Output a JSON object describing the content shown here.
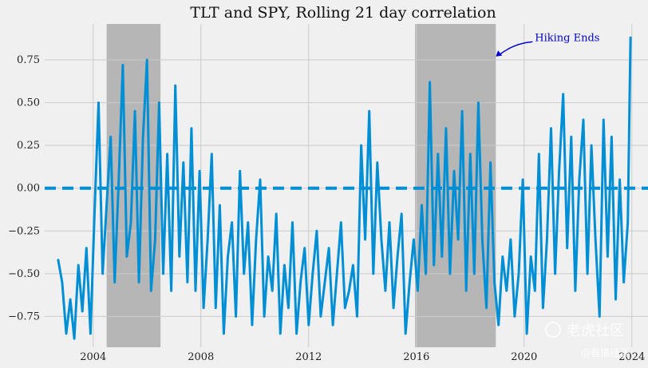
{
  "chart_data": {
    "type": "line",
    "title": "TLT and SPY, Rolling 21 day correlation",
    "xlabel": "",
    "ylabel": "",
    "xlim": [
      2002.2,
      2024.6
    ],
    "ylim": [
      -0.93,
      0.96
    ],
    "x_ticks": [
      2004,
      2008,
      2012,
      2016,
      2020,
      2024
    ],
    "x_tick_labels": [
      "2004",
      "2008",
      "2012",
      "2016",
      "2020",
      "2024"
    ],
    "y_ticks": [
      0.75,
      0.5,
      0.25,
      0.0,
      -0.25,
      -0.5,
      -0.75
    ],
    "y_tick_labels": [
      "0.75",
      "0.50",
      "0.25",
      "0.00",
      "−0.25",
      "−0.50",
      "−0.75"
    ],
    "grid": true,
    "shaded_regions": [
      {
        "x0": 2004.5,
        "x1": 2006.5
      },
      {
        "x0": 2015.95,
        "x1": 2018.95
      }
    ],
    "reference_line": {
      "y": 0.0,
      "style": "dashed"
    },
    "annotation": {
      "text": "Hiking Ends",
      "x": 2020.4,
      "y": 0.86,
      "arrow_to": {
        "x": 2018.95,
        "y": 0.77
      }
    },
    "series": [
      {
        "x": [
          2002.7,
          2002.85,
          2003.0,
          2003.15,
          2003.3,
          2003.45,
          2003.6,
          2003.75,
          2003.9,
          2004.05,
          2004.2,
          2004.35,
          2004.5,
          2004.65,
          2004.8,
          2004.95,
          2005.1,
          2005.25,
          2005.4,
          2005.55,
          2005.7,
          2005.85,
          2006.0,
          2006.15,
          2006.3,
          2006.45,
          2006.6,
          2006.75,
          2006.9,
          2007.05,
          2007.2,
          2007.35,
          2007.5,
          2007.65,
          2007.8,
          2007.95,
          2008.1,
          2008.25,
          2008.4,
          2008.55,
          2008.7,
          2008.85,
          2009.0,
          2009.15,
          2009.3,
          2009.45,
          2009.6,
          2009.75,
          2009.9,
          2010.05,
          2010.2,
          2010.35,
          2010.5,
          2010.65,
          2010.8,
          2010.95,
          2011.1,
          2011.25,
          2011.4,
          2011.55,
          2011.7,
          2011.85,
          2012.0,
          2012.15,
          2012.3,
          2012.45,
          2012.6,
          2012.75,
          2012.9,
          2013.05,
          2013.2,
          2013.35,
          2013.5,
          2013.65,
          2013.8,
          2013.95,
          2014.1,
          2014.25,
          2014.4,
          2014.55,
          2014.7,
          2014.85,
          2015.0,
          2015.15,
          2015.3,
          2015.45,
          2015.6,
          2015.75,
          2015.9,
          2016.05,
          2016.2,
          2016.35,
          2016.5,
          2016.65,
          2016.8,
          2016.95,
          2017.1,
          2017.25,
          2017.4,
          2017.55,
          2017.7,
          2017.85,
          2018.0,
          2018.15,
          2018.3,
          2018.45,
          2018.6,
          2018.75,
          2018.9,
          2019.05,
          2019.2,
          2019.35,
          2019.5,
          2019.65,
          2019.8,
          2019.95,
          2020.1,
          2020.25,
          2020.4,
          2020.55,
          2020.7,
          2020.85,
          2021.0,
          2021.15,
          2021.3,
          2021.45,
          2021.6,
          2021.75,
          2021.9,
          2022.05,
          2022.2,
          2022.35,
          2022.5,
          2022.65,
          2022.8,
          2022.95,
          2023.1,
          2023.25,
          2023.4,
          2023.55,
          2023.7,
          2023.85,
          2023.95
        ],
        "y": [
          -0.42,
          -0.55,
          -0.85,
          -0.65,
          -0.88,
          -0.45,
          -0.72,
          -0.35,
          -0.85,
          -0.15,
          0.5,
          -0.5,
          -0.1,
          0.3,
          -0.55,
          0.05,
          0.72,
          -0.4,
          -0.2,
          0.45,
          -0.55,
          0.3,
          0.75,
          -0.6,
          -0.3,
          0.5,
          -0.5,
          0.2,
          -0.6,
          0.6,
          -0.4,
          0.15,
          -0.55,
          0.35,
          -0.6,
          0.1,
          -0.7,
          -0.3,
          0.2,
          -0.7,
          -0.1,
          -0.85,
          -0.4,
          -0.2,
          -0.75,
          0.1,
          -0.5,
          -0.2,
          -0.8,
          -0.3,
          0.05,
          -0.75,
          -0.4,
          -0.6,
          -0.15,
          -0.85,
          -0.45,
          -0.7,
          -0.2,
          -0.85,
          -0.55,
          -0.35,
          -0.8,
          -0.5,
          -0.25,
          -0.75,
          -0.55,
          -0.35,
          -0.8,
          -0.5,
          -0.2,
          -0.7,
          -0.6,
          -0.45,
          -0.75,
          0.25,
          -0.3,
          0.45,
          -0.5,
          0.15,
          -0.3,
          -0.6,
          -0.2,
          -0.7,
          -0.4,
          -0.15,
          -0.85,
          -0.55,
          -0.3,
          -0.6,
          -0.1,
          -0.5,
          0.62,
          -0.45,
          0.2,
          -0.4,
          0.35,
          -0.5,
          0.1,
          -0.3,
          0.45,
          -0.6,
          0.2,
          -0.5,
          0.5,
          -0.3,
          -0.7,
          0.15,
          -0.55,
          -0.8,
          -0.4,
          -0.6,
          -0.3,
          -0.75,
          -0.5,
          0.05,
          -0.85,
          -0.4,
          -0.6,
          0.2,
          -0.7,
          -0.3,
          0.35,
          -0.5,
          0.1,
          0.55,
          -0.35,
          0.3,
          -0.6,
          0.05,
          0.4,
          -0.5,
          0.25,
          -0.3,
          -0.75,
          0.4,
          -0.4,
          0.3,
          -0.65,
          0.05,
          -0.55,
          -0.2,
          0.88
        ]
      }
    ]
  },
  "watermark": {
    "brand": "老虎社区",
    "handle": "@看懂经济"
  },
  "colors": {
    "line": "#008fd5",
    "shade": "#b6b6b6",
    "arrow": "#0000cc",
    "background": "#f0f0f0",
    "grid": "#cbcbcb"
  }
}
